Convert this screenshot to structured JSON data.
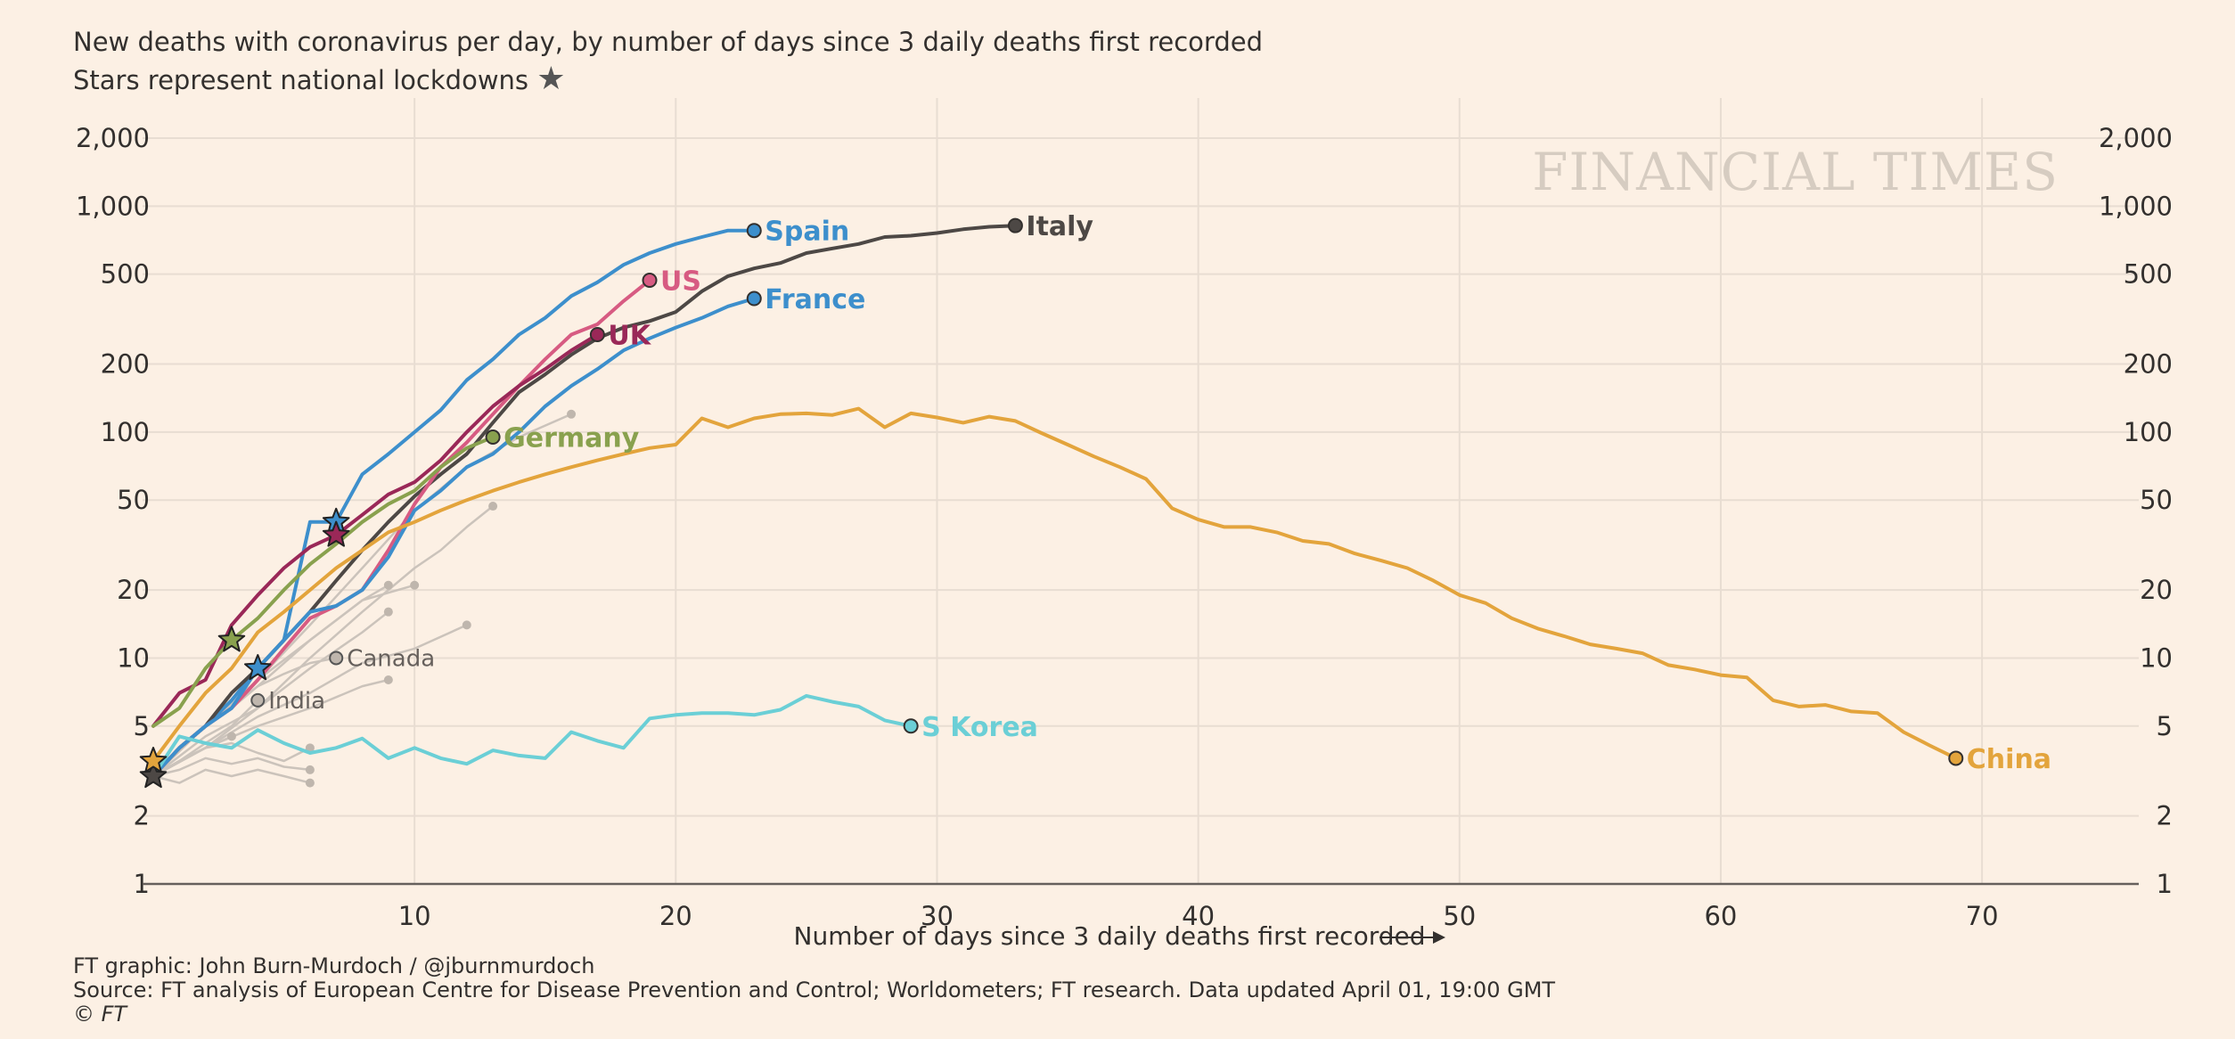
{
  "header": {
    "title": "New deaths with coronavirus per day, by number of days since 3 daily deaths first recorded",
    "subtitle": "Stars represent national lockdowns"
  },
  "watermark": "FINANCIAL TIMES",
  "footer": {
    "credit": "FT graphic: John Burn-Murdoch / @jburnmurdoch",
    "source": "Source: FT analysis of European Centre for Disease Prevention and Control; Worldometers; FT research. Data updated April 01, 19:00 GMT",
    "copyright": "© FT"
  },
  "chart_data": {
    "type": "line",
    "title": "New deaths with coronavirus per day, by number of days since 3 daily deaths first recorded",
    "subtitle": "Stars represent national lockdowns",
    "xlabel": "Number of days since 3 daily deaths first recorded",
    "ylabel": "",
    "y_scale": "log",
    "xlim": [
      0,
      76
    ],
    "ylim": [
      1,
      2000
    ],
    "x_ticks": [
      10,
      20,
      30,
      40,
      50,
      60,
      70
    ],
    "x_tick_labels": [
      "10",
      "20",
      "30",
      "40",
      "50",
      "60",
      "70"
    ],
    "y_ticks": [
      1,
      2,
      5,
      10,
      20,
      50,
      100,
      200,
      500,
      1000,
      2000
    ],
    "y_tick_labels": [
      "1",
      "2",
      "5",
      "10",
      "20",
      "50",
      "100",
      "200",
      "500",
      "1,000",
      "2,000"
    ],
    "grid": true,
    "highlighted_series": [
      {
        "name": "Spain",
        "color": "#3d8fcc",
        "label_weight": "bold",
        "x": [
          0,
          1,
          2,
          3,
          4,
          5,
          6,
          7,
          8,
          9,
          10,
          11,
          12,
          13,
          14,
          15,
          16,
          17,
          18,
          19,
          20,
          21,
          22,
          23
        ],
        "y": [
          3,
          4,
          5,
          6.5,
          9,
          12,
          40,
          40,
          65,
          80,
          100,
          125,
          170,
          210,
          270,
          320,
          400,
          460,
          550,
          620,
          680,
          730,
          780,
          780
        ],
        "lockdowns": [
          7
        ]
      },
      {
        "name": "Italy",
        "color": "#4d4845",
        "label_weight": "bold",
        "x": [
          0,
          1,
          2,
          3,
          4,
          5,
          6,
          7,
          8,
          9,
          10,
          11,
          12,
          13,
          14,
          15,
          16,
          17,
          18,
          19,
          20,
          21,
          22,
          23,
          24,
          25,
          26,
          27,
          28,
          29,
          30,
          31,
          32,
          33
        ],
        "y": [
          3,
          4,
          5,
          7,
          9,
          12,
          16,
          22,
          30,
          40,
          52,
          65,
          80,
          110,
          150,
          180,
          220,
          260,
          290,
          310,
          340,
          420,
          490,
          530,
          560,
          620,
          650,
          680,
          730,
          740,
          760,
          790,
          810,
          820
        ],
        "lockdowns": [
          0
        ]
      },
      {
        "name": "US",
        "color": "#d75b82",
        "label_weight": "bold",
        "x": [
          0,
          1,
          2,
          3,
          4,
          5,
          6,
          7,
          8,
          9,
          10,
          11,
          12,
          13,
          14,
          15,
          16,
          17,
          18,
          19
        ],
        "y": [
          3,
          4,
          5,
          6,
          8,
          11,
          15,
          17,
          20,
          30,
          48,
          70,
          90,
          120,
          160,
          210,
          270,
          300,
          380,
          470
        ],
        "lockdowns": []
      },
      {
        "name": "UK",
        "color": "#9a2858",
        "label_weight": "bold",
        "x": [
          0,
          1,
          2,
          3,
          4,
          5,
          6,
          7,
          8,
          9,
          10,
          11,
          12,
          13,
          14,
          15,
          16,
          17
        ],
        "y": [
          5,
          7,
          8,
          14,
          19,
          25,
          31,
          35,
          43,
          53,
          60,
          75,
          100,
          130,
          160,
          190,
          230,
          270
        ],
        "lockdowns": [
          7
        ]
      },
      {
        "name": "France",
        "color": "#3d8fcc",
        "label_weight": "bold",
        "x": [
          0,
          1,
          2,
          3,
          4,
          5,
          6,
          7,
          8,
          9,
          10,
          11,
          12,
          13,
          14,
          15,
          16,
          17,
          18,
          19,
          20,
          21,
          22,
          23
        ],
        "y": [
          3,
          4,
          5,
          6,
          9,
          12,
          16,
          17,
          20,
          28,
          45,
          55,
          70,
          80,
          100,
          130,
          160,
          190,
          230,
          260,
          290,
          320,
          360,
          390
        ],
        "lockdowns": [
          4
        ]
      },
      {
        "name": "Germany",
        "color": "#89a14e",
        "label_weight": "bold",
        "x": [
          0,
          1,
          2,
          3,
          4,
          5,
          6,
          7,
          8,
          9,
          10,
          11,
          12,
          13
        ],
        "y": [
          5,
          6,
          9,
          12,
          15,
          20,
          26,
          32,
          40,
          48,
          55,
          70,
          85,
          95
        ],
        "lockdowns": [
          3
        ]
      },
      {
        "name": "China",
        "color": "#e3a43c",
        "label_weight": "bold",
        "x": [
          0,
          1,
          2,
          3,
          4,
          5,
          6,
          7,
          8,
          9,
          10,
          11,
          12,
          13,
          14,
          15,
          16,
          17,
          18,
          19,
          20,
          21,
          22,
          23,
          24,
          25,
          26,
          27,
          28,
          29,
          30,
          31,
          32,
          33,
          34,
          35,
          36,
          37,
          38,
          39,
          40,
          41,
          42,
          43,
          44,
          45,
          46,
          47,
          48,
          49,
          50,
          51,
          52,
          53,
          54,
          55,
          56,
          57,
          58,
          59,
          60,
          61,
          62,
          63,
          64,
          65,
          66,
          67,
          68,
          69
        ],
        "y": [
          3.5,
          5,
          7,
          9,
          13,
          16,
          20,
          25,
          30,
          36,
          40,
          45,
          50,
          55,
          60,
          65,
          70,
          75,
          80,
          85,
          88,
          115,
          105,
          115,
          120,
          121,
          119,
          127,
          105,
          121,
          116,
          110,
          117,
          112,
          99,
          88,
          78,
          70,
          62,
          46,
          41,
          38,
          38,
          36,
          33,
          32,
          29,
          27,
          25,
          22,
          19,
          17.5,
          15,
          13.5,
          12.5,
          11.5,
          11,
          10.5,
          9.3,
          8.9,
          8.4,
          8.2,
          6.5,
          6.1,
          6.2,
          5.8,
          5.7,
          4.7,
          4.1,
          3.6
        ],
        "lockdowns": [
          0
        ]
      },
      {
        "name": "S Korea",
        "color": "#6bcfd6",
        "label_weight": "bold",
        "x": [
          0,
          1,
          2,
          3,
          4,
          5,
          6,
          7,
          8,
          9,
          10,
          11,
          12,
          13,
          14,
          15,
          16,
          17,
          18,
          19,
          20,
          21,
          22,
          23,
          24,
          25,
          26,
          27,
          28,
          29
        ],
        "y": [
          3,
          4.5,
          4.2,
          4,
          4.8,
          4.2,
          3.8,
          4,
          4.4,
          3.6,
          4,
          3.6,
          3.4,
          3.9,
          3.7,
          3.6,
          4.7,
          4.3,
          4,
          5.4,
          5.6,
          5.7,
          5.7,
          5.6,
          5.9,
          6.8,
          6.4,
          6.1,
          5.3,
          5
        ],
        "lockdowns": []
      }
    ],
    "labeled_other_series": [
      {
        "name": "Canada",
        "color": "#a7a19c",
        "x": [
          0,
          1,
          2,
          3,
          4,
          5,
          6,
          7
        ],
        "y": [
          3,
          4,
          5,
          6,
          7.5,
          8.5,
          9.5,
          10
        ]
      },
      {
        "name": "India",
        "color": "#a7a19c",
        "x": [
          0,
          1,
          2,
          3,
          4
        ],
        "y": [
          3,
          3.5,
          4.2,
          5,
          6.5
        ]
      }
    ],
    "other_series": [
      {
        "x": [
          0,
          2,
          4,
          6,
          8,
          10,
          12,
          14,
          16
        ],
        "y": [
          3,
          5,
          8,
          14,
          25,
          45,
          70,
          95,
          120
        ]
      },
      {
        "x": [
          0,
          2,
          4,
          6,
          8,
          10,
          11,
          12,
          13
        ],
        "y": [
          3,
          4.5,
          6,
          10,
          16,
          25,
          30,
          38,
          47
        ]
      },
      {
        "x": [
          0,
          2,
          4,
          6,
          8,
          9
        ],
        "y": [
          3,
          5,
          8,
          12,
          18,
          21
        ]
      },
      {
        "x": [
          0,
          2,
          4,
          6,
          8,
          10
        ],
        "y": [
          3,
          5,
          7.5,
          12,
          18,
          21
        ]
      },
      {
        "x": [
          0,
          2,
          4,
          6,
          8,
          9
        ],
        "y": [
          3,
          4,
          6,
          9,
          13,
          16
        ]
      },
      {
        "x": [
          0,
          2,
          4,
          6,
          8,
          10,
          12
        ],
        "y": [
          3,
          4,
          5.5,
          7,
          9.5,
          11,
          14
        ]
      },
      {
        "x": [
          0,
          2,
          4,
          6,
          8,
          9
        ],
        "y": [
          3,
          4,
          5,
          6,
          7.5,
          8
        ]
      },
      {
        "x": [
          0,
          1,
          2,
          3,
          4,
          5,
          6
        ],
        "y": [
          3,
          3.5,
          4,
          4.2,
          3.8,
          3.5,
          4
        ]
      },
      {
        "x": [
          0,
          1,
          2,
          3,
          4,
          5,
          6
        ],
        "y": [
          3,
          3.2,
          3.6,
          3.4,
          3.6,
          3.3,
          3.2
        ]
      },
      {
        "x": [
          0,
          1,
          2,
          3,
          4,
          5,
          6
        ],
        "y": [
          3,
          2.8,
          3.2,
          3,
          3.2,
          3,
          2.8
        ]
      },
      {
        "x": [
          0,
          1,
          2,
          3
        ],
        "y": [
          3,
          3.5,
          4,
          4.5
        ]
      }
    ]
  }
}
